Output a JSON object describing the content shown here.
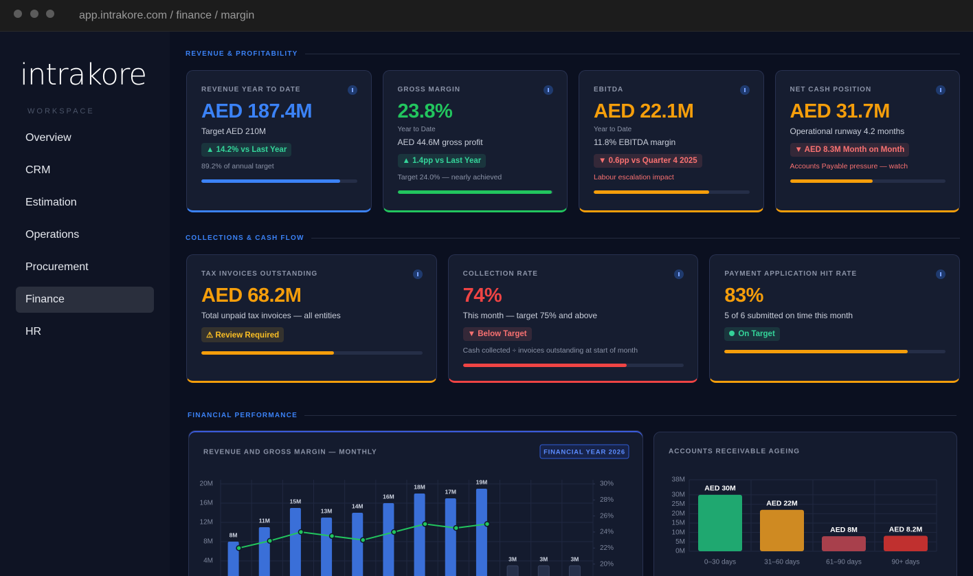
{
  "browser": {
    "url": "app.intrakore.com / finance / margin"
  },
  "sidebar": {
    "logo": "intrakore",
    "section": "WORKSPACE",
    "nav": [
      {
        "label": "Overview",
        "active": false
      },
      {
        "label": "CRM",
        "active": false
      },
      {
        "label": "Estimation",
        "active": false
      },
      {
        "label": "Operations",
        "active": false
      },
      {
        "label": "Procurement",
        "active": false
      },
      {
        "label": "Finance",
        "active": true
      },
      {
        "label": "HR",
        "active": false
      }
    ]
  },
  "kpi_sections": [
    {
      "title": "REVENUE & PROFITABILITY",
      "cards": [
        {
          "label": "REVENUE YEAR TO DATE",
          "value": "AED 187.4M",
          "value_color": "#3b82f6",
          "detail": "Target AED 210M",
          "badge": {
            "text": "▲ 14.2% vs Last Year",
            "color": "#34d399"
          },
          "note": "89.2% of annual target",
          "note_color": "#8b93a7",
          "progress": 89,
          "accent": "#3b82f6"
        },
        {
          "label": "GROSS MARGIN",
          "value": "23.8%",
          "value_color": "#22c55e",
          "caption": "Year to Date",
          "detail": "AED 44.6M gross profit",
          "badge": {
            "text": "▲ 1.4pp vs Last Year",
            "color": "#34d399"
          },
          "note": "Target 24.0% — nearly achieved",
          "note_color": "#8b93a7",
          "progress": 99,
          "accent": "#22c55e"
        },
        {
          "label": "EBITDA",
          "value": "AED 22.1M",
          "value_color": "#f59e0b",
          "caption": "Year to Date",
          "detail": "11.8% EBITDA margin",
          "badge": {
            "text": "▼ 0.6pp vs Quarter 4 2025",
            "color": "#f87171"
          },
          "note": "Labour escalation impact",
          "note_color": "#f87171",
          "progress": 74,
          "accent": "#f59e0b"
        },
        {
          "label": "NET CASH POSITION",
          "value": "AED 31.7M",
          "value_color": "#f59e0b",
          "detail": "Operational runway 4.2 months",
          "badge": {
            "text": "▼ AED 8.3M Month on Month",
            "color": "#f87171"
          },
          "note": "Accounts Payable pressure — watch",
          "note_color": "#f87171",
          "progress": 53,
          "accent": "#f59e0b"
        }
      ]
    },
    {
      "title": "COLLECTIONS & CASH FLOW",
      "cards": [
        {
          "label": "TAX INVOICES OUTSTANDING",
          "value": "AED 68.2M",
          "value_color": "#f59e0b",
          "detail": "Total unpaid tax invoices — all entities",
          "badge": {
            "text": "⚠ Review Required",
            "color": "#fbbf24"
          },
          "progress": 60,
          "accent": "#f59e0b"
        },
        {
          "label": "COLLECTION RATE",
          "value": "74%",
          "value_color": "#ef4444",
          "detail": "This month — target 75% and above",
          "badge": {
            "text": "▼ Below Target",
            "color": "#f87171"
          },
          "note": "Cash collected ÷ invoices outstanding at start of month",
          "note_color": "#8b93a7",
          "progress": 74,
          "accent": "#ef4444"
        },
        {
          "label": "PAYMENT APPLICATION HIT RATE",
          "value": "83%",
          "value_color": "#f59e0b",
          "detail": "5 of 6 submitted on time this month",
          "badge": {
            "text": "On Target",
            "color": "#34d399",
            "dot": true
          },
          "progress": 83,
          "accent": "#f59e0b"
        }
      ]
    }
  ],
  "performance_title": "FINANCIAL PERFORMANCE",
  "chart_data": [
    {
      "type": "bar-line",
      "title": "REVENUE AND GROSS MARGIN — MONTHLY",
      "tag": "FINANCIAL YEAR 2026",
      "categories": [
        null,
        null,
        null,
        null,
        null,
        null,
        null,
        null,
        null,
        null,
        null,
        null
      ],
      "series": [
        {
          "type": "bar",
          "colors": [
            "#3a6fd8",
            "#3a6fd8",
            "#3a6fd8",
            "#3a6fd8",
            "#3a6fd8",
            "#3a6fd8",
            "#3a6fd8",
            "#3a6fd8",
            "#3a6fd8",
            "#26304a",
            "#26304a",
            "#26304a"
          ],
          "values": [
            8,
            11,
            15,
            13,
            14,
            16,
            18,
            17,
            19,
            3,
            3,
            3
          ],
          "value_labels": [
            "8M",
            "11M",
            "15M",
            "13M",
            "14M",
            "16M",
            "18M",
            "17M",
            "19M",
            "3M",
            "3M",
            "3M"
          ]
        },
        {
          "type": "line",
          "axis": "y2",
          "color": "#22c55e",
          "values": [
            22,
            22.9,
            24,
            23.5,
            23,
            24,
            25,
            24.5,
            25,
            null,
            null,
            null
          ]
        }
      ],
      "ylim": [
        0,
        20
      ],
      "yticks": [
        {
          "value": 4,
          "label": "4M"
        },
        {
          "value": 8,
          "label": "8M"
        },
        {
          "value": 12,
          "label": "12M"
        },
        {
          "value": 16,
          "label": "16M"
        },
        {
          "value": 20,
          "label": "20M"
        }
      ],
      "y2lim": [
        18,
        30
      ],
      "y2ticks": [
        {
          "value": 20,
          "label": "20%"
        },
        {
          "value": 22,
          "label": "22%"
        },
        {
          "value": 24,
          "label": "24%"
        },
        {
          "value": 26,
          "label": "26%"
        },
        {
          "value": 28,
          "label": "28%"
        },
        {
          "value": 30,
          "label": "30%"
        }
      ],
      "grid": true
    },
    {
      "type": "bar",
      "title": "ACCOUNTS RECEIVABLE AGEING",
      "categories": [
        "0–30 days",
        "31–60 days",
        "61–90 days",
        "90+ days"
      ],
      "values": [
        30,
        22,
        8,
        8.2
      ],
      "value_labels": [
        "AED 30M",
        "AED 22M",
        "AED 8M",
        "AED 8.2M"
      ],
      "colors": [
        "#1fa870",
        "#cf8a22",
        "#a8404c",
        "#c0302f"
      ],
      "ylim": [
        0,
        38
      ],
      "yticks": [
        {
          "value": 0,
          "label": "0M"
        },
        {
          "value": 5,
          "label": "5M"
        },
        {
          "value": 10,
          "label": "10M"
        },
        {
          "value": 15,
          "label": "15M"
        },
        {
          "value": 20,
          "label": "20M"
        },
        {
          "value": 25,
          "label": "25M"
        },
        {
          "value": 30,
          "label": "30M"
        },
        {
          "value": 38,
          "label": "38M"
        }
      ],
      "grid": true
    }
  ]
}
